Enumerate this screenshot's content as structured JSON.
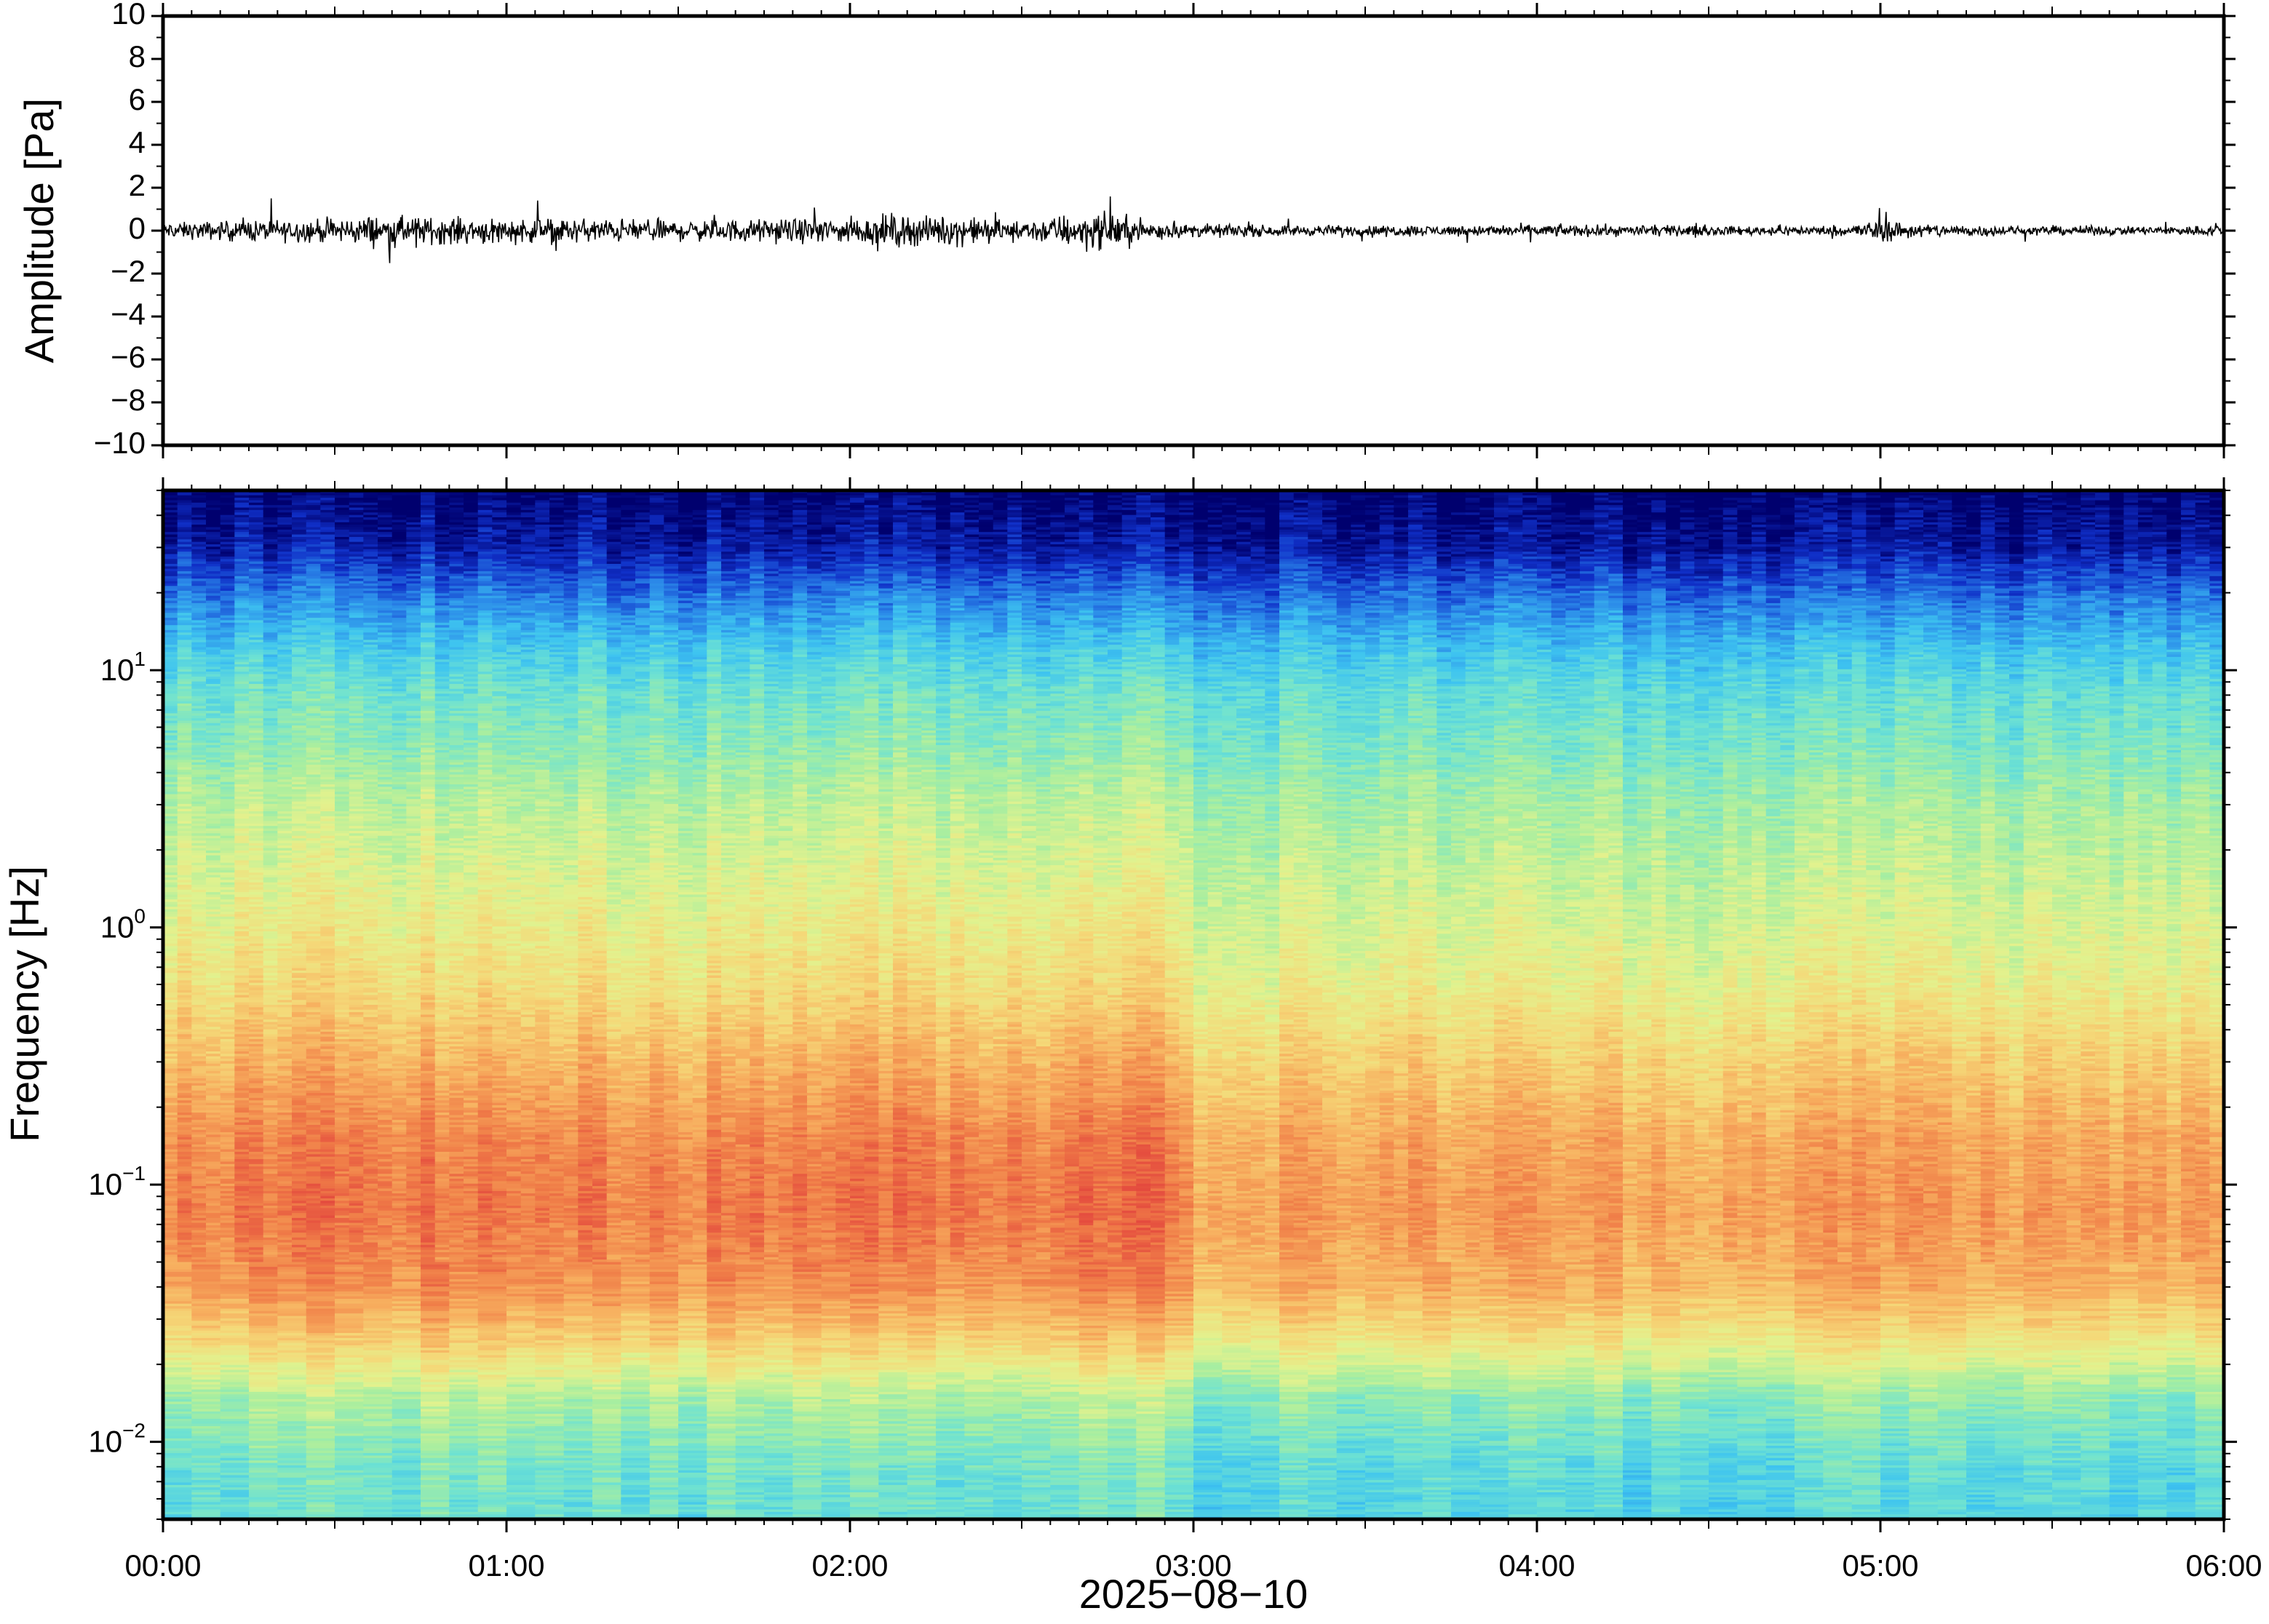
{
  "chart_data": [
    {
      "type": "line",
      "title": "",
      "ylabel": "Amplitude [Pa]",
      "ylim": [
        -10,
        10
      ],
      "yticks": [
        -10,
        -8,
        -6,
        -4,
        -2,
        0,
        2,
        4,
        6,
        8,
        10
      ],
      "ytick_labels": [
        "−10",
        "−8",
        "−6",
        "−4",
        "−2",
        "0",
        "2",
        "4",
        "6",
        "8",
        "10"
      ],
      "xlim_hours": [
        0,
        6
      ],
      "grid": false,
      "series": [
        {
          "color": "#000000",
          "envelope": {
            "x_hours": [
              0,
              0.25,
              0.5,
              0.6,
              0.75,
              1.0,
              1.25,
              1.5,
              1.75,
              2.0,
              2.1,
              2.2,
              2.35,
              2.5,
              2.6,
              2.7,
              2.8,
              2.95,
              3.2,
              3.5,
              3.75,
              4.0,
              4.3,
              4.6,
              4.9,
              5.0,
              5.1,
              5.4,
              5.8,
              6.0
            ],
            "amplitude": [
              0.5,
              0.7,
              0.8,
              1.0,
              0.9,
              0.85,
              0.8,
              0.7,
              0.75,
              0.85,
              1.1,
              1.0,
              0.9,
              0.6,
              1.0,
              1.3,
              1.0,
              0.45,
              0.35,
              0.35,
              0.35,
              0.4,
              0.35,
              0.3,
              0.35,
              0.8,
              0.5,
              0.3,
              0.3,
              0.35
            ]
          }
        }
      ]
    },
    {
      "type": "heatmap",
      "title": "",
      "ylabel": "Frequency [Hz]",
      "xlabel": "2025−08−10",
      "yscale": "log",
      "ylim": [
        0.005,
        50
      ],
      "ytick_values": [
        0.01,
        0.1,
        1,
        10
      ],
      "ytick_labels": [
        {
          "base": "10",
          "exp": "−2"
        },
        {
          "base": "10",
          "exp": "−1"
        },
        {
          "base": "10",
          "exp": "0"
        },
        {
          "base": "10",
          "exp": "1"
        }
      ],
      "xlim_hours": [
        0,
        6
      ],
      "xticks_hours": [
        0,
        1,
        2,
        3,
        4,
        5,
        6
      ],
      "xtick_labels": [
        "00:00",
        "01:00",
        "02:00",
        "03:00",
        "04:00",
        "05:00",
        "06:00"
      ],
      "colormap": [
        "#00006e",
        "#1030c8",
        "#2a86e8",
        "#3ec4f0",
        "#6ee2d2",
        "#a8eea0",
        "#e2f28e",
        "#f5d878",
        "#f7ad5e",
        "#f07e48",
        "#e44a3e"
      ],
      "intensity_profile": {
        "freq_hz": [
          50,
          30,
          20,
          12,
          8,
          5,
          3,
          1.5,
          0.6,
          0.3,
          0.15,
          0.08,
          0.04,
          0.025,
          0.015,
          0.008,
          0.005
        ],
        "level": [
          0.0,
          0.06,
          0.18,
          0.32,
          0.4,
          0.45,
          0.52,
          0.58,
          0.66,
          0.76,
          0.85,
          0.88,
          0.83,
          0.7,
          0.5,
          0.4,
          0.38
        ]
      },
      "time_activity": {
        "x_hours": [
          0,
          0.5,
          1.0,
          1.5,
          2.0,
          2.5,
          2.7,
          2.95,
          3.0,
          3.5,
          4.0,
          4.5,
          5.0,
          5.5,
          6.0
        ],
        "offset": [
          0.0,
          0.05,
          0.03,
          0.02,
          0.05,
          0.03,
          0.08,
          0.06,
          -0.06,
          -0.04,
          -0.04,
          -0.06,
          -0.02,
          -0.05,
          -0.05
        ]
      }
    }
  ]
}
